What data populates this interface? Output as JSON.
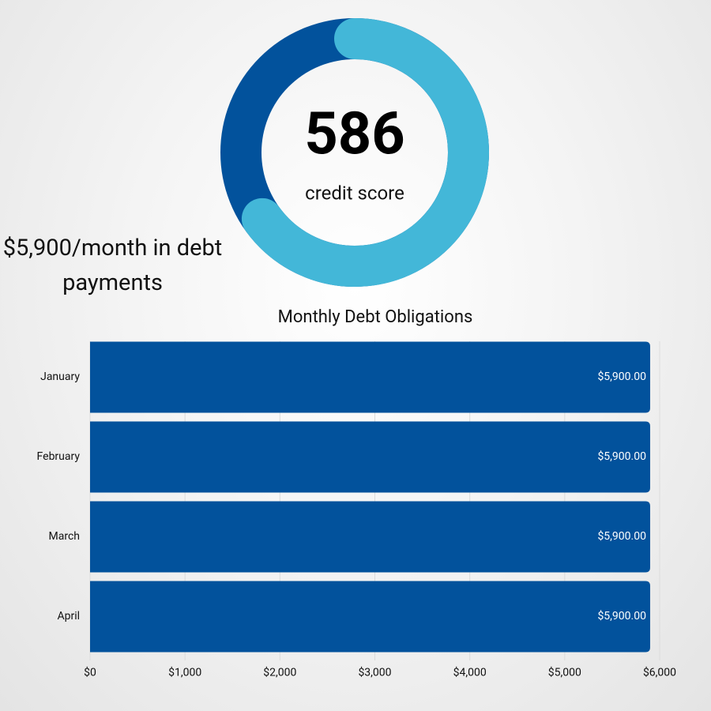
{
  "headline": "$5,900/month in debt payments",
  "gauge": {
    "value": 586,
    "label": "credit score",
    "lim": [
      0,
      900
    ],
    "track_color": "#02529c",
    "color": "#43b7d8"
  },
  "chart_data": {
    "type": "bar",
    "orientation": "horizontal",
    "title": "Monthly Debt Obligations",
    "categories": [
      "January",
      "February",
      "March",
      "April"
    ],
    "values": [
      5900,
      5900,
      5900,
      5900
    ],
    "value_labels": [
      "$5,900.00",
      "$5,900.00",
      "$5,900.00",
      "$5,900.00"
    ],
    "color": "#02529c",
    "xlim": [
      0,
      6000
    ],
    "xticks": [
      {
        "value": 0,
        "label": "$0"
      },
      {
        "value": 1000,
        "label": "$1,000"
      },
      {
        "value": 2000,
        "label": "$2,000"
      },
      {
        "value": 3000,
        "label": "$3,000"
      },
      {
        "value": 4000,
        "label": "$4,000"
      },
      {
        "value": 5000,
        "label": "$5,000"
      },
      {
        "value": 6000,
        "label": "$6,000"
      }
    ],
    "grid": true
  }
}
